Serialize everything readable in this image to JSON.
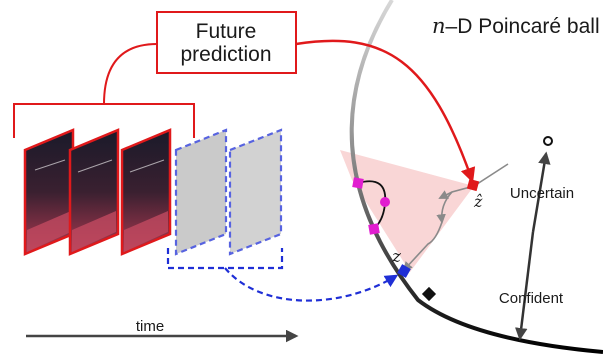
{
  "title": {
    "variable": "n",
    "rest": "–D Poincaré ball"
  },
  "future_box": {
    "line1": "Future",
    "line2": "prediction"
  },
  "labels": {
    "uncertain": "Uncertain",
    "confident": "Confident",
    "time": "time",
    "z_hat": "ẑ",
    "z": "z"
  },
  "colors": {
    "red": "#e0191b",
    "blue": "#1f2fd6",
    "pink_region": "#f9d6d6",
    "magenta": "#e11ed0",
    "gray_arrow": "#8a8a8a",
    "dark": "#333333"
  }
}
